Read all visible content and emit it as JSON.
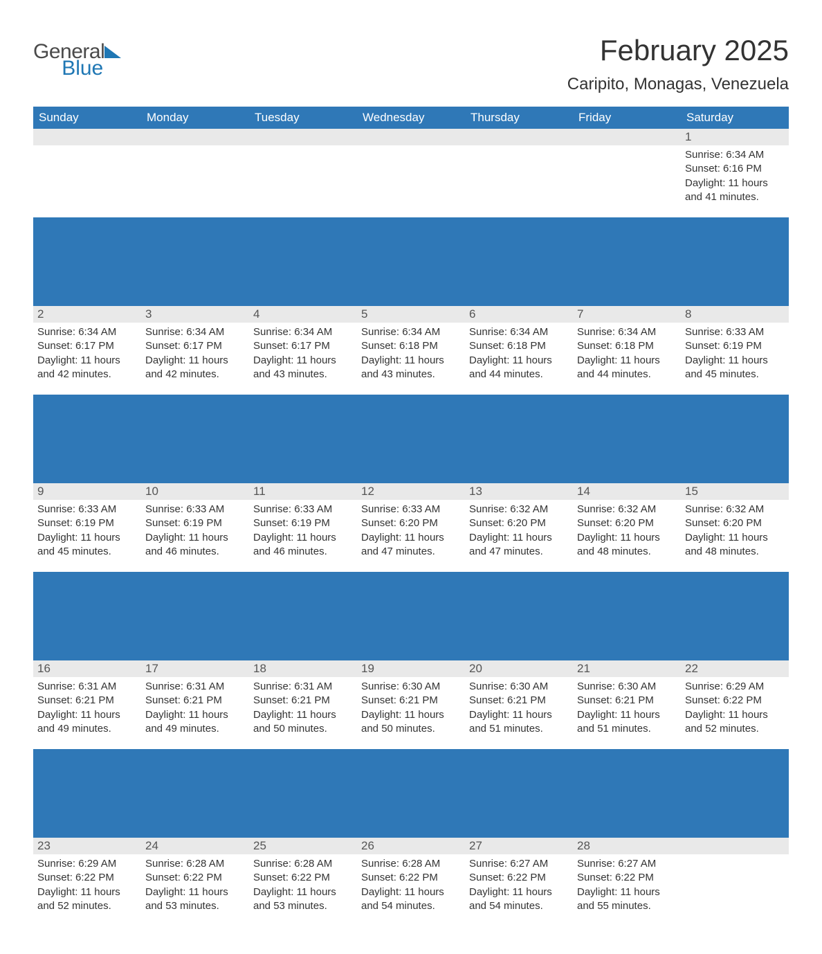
{
  "brand": {
    "general": "General",
    "blue": "Blue"
  },
  "title": "February 2025",
  "location": "Caripito, Monagas, Venezuela",
  "colors": {
    "header_bg": "#2f78b7",
    "header_text": "#ffffff",
    "daynum_bg": "#e9e9e9",
    "text": "#333333",
    "logo_blue": "#1f77b4",
    "logo_gray": "#4a4a4a",
    "page_bg": "#ffffff"
  },
  "typography": {
    "title_fontsize": 42,
    "location_fontsize": 24,
    "header_fontsize": 17,
    "body_fontsize": 15
  },
  "layout": {
    "columns": 7,
    "rows": 5,
    "start_day_index": 6
  },
  "weekdays": [
    "Sunday",
    "Monday",
    "Tuesday",
    "Wednesday",
    "Thursday",
    "Friday",
    "Saturday"
  ],
  "days": [
    {
      "n": 1,
      "sunrise": "6:34 AM",
      "sunset": "6:16 PM",
      "daylight": "11 hours and 41 minutes."
    },
    {
      "n": 2,
      "sunrise": "6:34 AM",
      "sunset": "6:17 PM",
      "daylight": "11 hours and 42 minutes."
    },
    {
      "n": 3,
      "sunrise": "6:34 AM",
      "sunset": "6:17 PM",
      "daylight": "11 hours and 42 minutes."
    },
    {
      "n": 4,
      "sunrise": "6:34 AM",
      "sunset": "6:17 PM",
      "daylight": "11 hours and 43 minutes."
    },
    {
      "n": 5,
      "sunrise": "6:34 AM",
      "sunset": "6:18 PM",
      "daylight": "11 hours and 43 minutes."
    },
    {
      "n": 6,
      "sunrise": "6:34 AM",
      "sunset": "6:18 PM",
      "daylight": "11 hours and 44 minutes."
    },
    {
      "n": 7,
      "sunrise": "6:34 AM",
      "sunset": "6:18 PM",
      "daylight": "11 hours and 44 minutes."
    },
    {
      "n": 8,
      "sunrise": "6:33 AM",
      "sunset": "6:19 PM",
      "daylight": "11 hours and 45 minutes."
    },
    {
      "n": 9,
      "sunrise": "6:33 AM",
      "sunset": "6:19 PM",
      "daylight": "11 hours and 45 minutes."
    },
    {
      "n": 10,
      "sunrise": "6:33 AM",
      "sunset": "6:19 PM",
      "daylight": "11 hours and 46 minutes."
    },
    {
      "n": 11,
      "sunrise": "6:33 AM",
      "sunset": "6:19 PM",
      "daylight": "11 hours and 46 minutes."
    },
    {
      "n": 12,
      "sunrise": "6:33 AM",
      "sunset": "6:20 PM",
      "daylight": "11 hours and 47 minutes."
    },
    {
      "n": 13,
      "sunrise": "6:32 AM",
      "sunset": "6:20 PM",
      "daylight": "11 hours and 47 minutes."
    },
    {
      "n": 14,
      "sunrise": "6:32 AM",
      "sunset": "6:20 PM",
      "daylight": "11 hours and 48 minutes."
    },
    {
      "n": 15,
      "sunrise": "6:32 AM",
      "sunset": "6:20 PM",
      "daylight": "11 hours and 48 minutes."
    },
    {
      "n": 16,
      "sunrise": "6:31 AM",
      "sunset": "6:21 PM",
      "daylight": "11 hours and 49 minutes."
    },
    {
      "n": 17,
      "sunrise": "6:31 AM",
      "sunset": "6:21 PM",
      "daylight": "11 hours and 49 minutes."
    },
    {
      "n": 18,
      "sunrise": "6:31 AM",
      "sunset": "6:21 PM",
      "daylight": "11 hours and 50 minutes."
    },
    {
      "n": 19,
      "sunrise": "6:30 AM",
      "sunset": "6:21 PM",
      "daylight": "11 hours and 50 minutes."
    },
    {
      "n": 20,
      "sunrise": "6:30 AM",
      "sunset": "6:21 PM",
      "daylight": "11 hours and 51 minutes."
    },
    {
      "n": 21,
      "sunrise": "6:30 AM",
      "sunset": "6:21 PM",
      "daylight": "11 hours and 51 minutes."
    },
    {
      "n": 22,
      "sunrise": "6:29 AM",
      "sunset": "6:22 PM",
      "daylight": "11 hours and 52 minutes."
    },
    {
      "n": 23,
      "sunrise": "6:29 AM",
      "sunset": "6:22 PM",
      "daylight": "11 hours and 52 minutes."
    },
    {
      "n": 24,
      "sunrise": "6:28 AM",
      "sunset": "6:22 PM",
      "daylight": "11 hours and 53 minutes."
    },
    {
      "n": 25,
      "sunrise": "6:28 AM",
      "sunset": "6:22 PM",
      "daylight": "11 hours and 53 minutes."
    },
    {
      "n": 26,
      "sunrise": "6:28 AM",
      "sunset": "6:22 PM",
      "daylight": "11 hours and 54 minutes."
    },
    {
      "n": 27,
      "sunrise": "6:27 AM",
      "sunset": "6:22 PM",
      "daylight": "11 hours and 54 minutes."
    },
    {
      "n": 28,
      "sunrise": "6:27 AM",
      "sunset": "6:22 PM",
      "daylight": "11 hours and 55 minutes."
    }
  ],
  "labels": {
    "sunrise": "Sunrise:",
    "sunset": "Sunset:",
    "daylight": "Daylight:"
  }
}
